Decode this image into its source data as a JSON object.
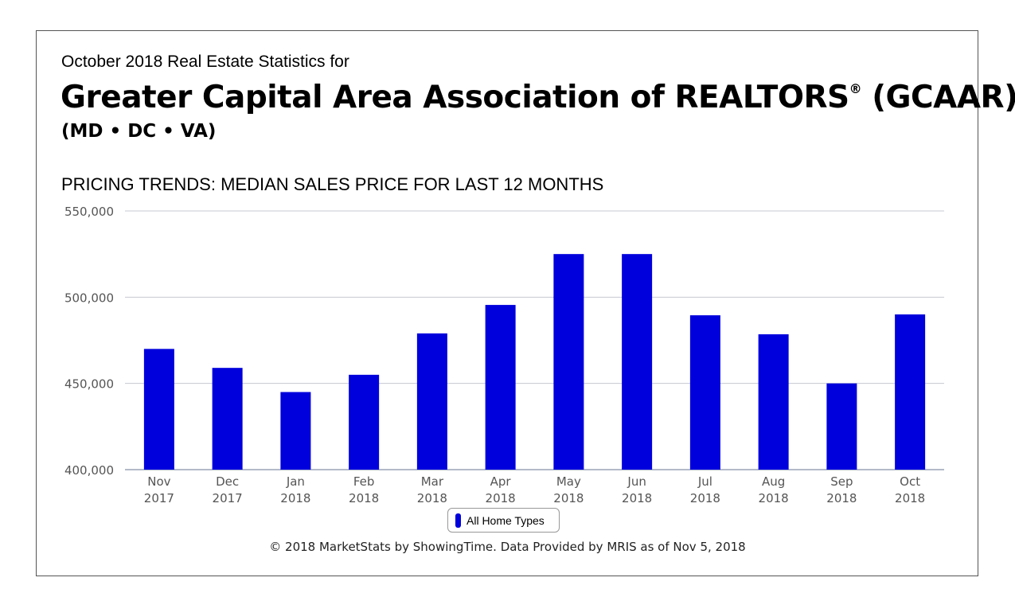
{
  "header": {
    "subtitle": "October 2018 Real Estate Statistics for",
    "title": "Greater Capital Area Association of REALTORS",
    "registered_mark": "®",
    "title_suffix": " (GCAAR)",
    "region": "(MD • DC • VA)"
  },
  "section_title": "PRICING TRENDS: MEDIAN SALES PRICE FOR LAST 12 MONTHS",
  "legend": {
    "label": "All Home Types",
    "color": "#0000dd"
  },
  "footer": "© 2018 MarketStats by ShowingTime. Data Provided by MRIS as of Nov 5, 2018",
  "chart_data": {
    "type": "bar",
    "title": "PRICING TRENDS: MEDIAN SALES PRICE FOR LAST 12 MONTHS",
    "categories": [
      [
        "Nov",
        "2017"
      ],
      [
        "Dec",
        "2017"
      ],
      [
        "Jan",
        "2018"
      ],
      [
        "Feb",
        "2018"
      ],
      [
        "Mar",
        "2018"
      ],
      [
        "Apr",
        "2018"
      ],
      [
        "May",
        "2018"
      ],
      [
        "Jun",
        "2018"
      ],
      [
        "Jul",
        "2018"
      ],
      [
        "Aug",
        "2018"
      ],
      [
        "Sep",
        "2018"
      ],
      [
        "Oct",
        "2018"
      ]
    ],
    "series": [
      {
        "name": "All Home Types",
        "values": [
          470000,
          459000,
          445000,
          455000,
          479000,
          495500,
          525000,
          525000,
          489500,
          478500,
          450000,
          490000
        ]
      }
    ],
    "ylim": [
      400000,
      550000
    ],
    "yticks": [
      400000,
      450000,
      500000,
      550000
    ],
    "ytick_labels": [
      "400,000",
      "450,000",
      "500,000",
      "550,000"
    ],
    "grid": true,
    "legend_position": "bottom-center",
    "bar_color": "#0000dd"
  }
}
